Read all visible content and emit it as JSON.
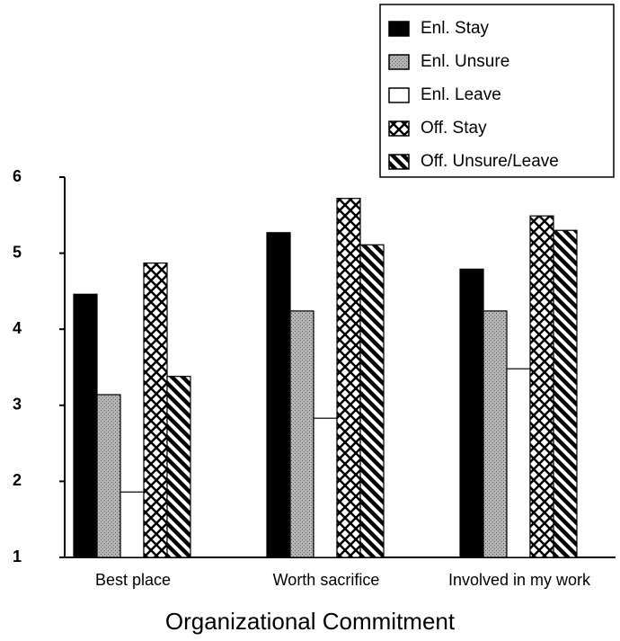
{
  "chart_data": {
    "type": "bar",
    "xlabel": "Organizational Commitment",
    "categories": [
      "Best place",
      "Worth sacrifice",
      "Involved in my work"
    ],
    "series": [
      {
        "name": "Enl. Stay",
        "color": "#000000",
        "pattern": "solid",
        "values": [
          4.46,
          5.27,
          4.79
        ]
      },
      {
        "name": "Enl. Unsure",
        "color": "#9a9a9a",
        "pattern": "stipple",
        "values": [
          3.14,
          4.24,
          4.24
        ]
      },
      {
        "name": "Enl. Leave",
        "color": "#ffffff",
        "pattern": "none",
        "values": [
          1.86,
          2.83,
          3.48
        ]
      },
      {
        "name": "Off. Stay",
        "color": "#000000",
        "pattern": "crosshatch",
        "values": [
          4.87,
          5.72,
          5.49
        ]
      },
      {
        "name": "Off. Unsure/Leave",
        "color": "#000000",
        "pattern": "diagonal",
        "values": [
          3.38,
          5.11,
          5.3
        ]
      }
    ],
    "ylim": [
      1,
      6
    ],
    "yticks": [
      1,
      2,
      3,
      4,
      5,
      6
    ],
    "grid": false,
    "legend": "top-right"
  }
}
